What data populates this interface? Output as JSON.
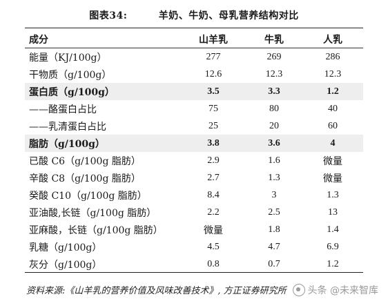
{
  "caption": {
    "number": "图表34:",
    "title": "羊奶、牛奶、母乳营养结构对比"
  },
  "table": {
    "headers": [
      "成分",
      "山羊乳",
      "牛乳",
      "人乳"
    ],
    "rows": [
      {
        "name": "能量（KJ/100g）",
        "goat": "277",
        "cow": "269",
        "human": "286",
        "bold": false,
        "shaded": false
      },
      {
        "name": "干物质（g/100g）",
        "goat": "12.6",
        "cow": "12.3",
        "human": "12.3",
        "bold": false,
        "shaded": false
      },
      {
        "name": "蛋白质（g/100g）",
        "goat": "3.5",
        "cow": "3.3",
        "human": "1.2",
        "bold": true,
        "shaded": true
      },
      {
        "name": "——酪蛋白占比",
        "goat": "75",
        "cow": "80",
        "human": "40",
        "bold": false,
        "shaded": false
      },
      {
        "name": "——乳清蛋白占比",
        "goat": "25",
        "cow": "20",
        "human": "60",
        "bold": false,
        "shaded": false
      },
      {
        "name": "脂肪（g/100g）",
        "goat": "3.8",
        "cow": "3.6",
        "human": "4",
        "bold": true,
        "shaded": true
      },
      {
        "name": "已酸 C6（g/100g 脂肪）",
        "goat": "2.9",
        "cow": "1.6",
        "human": "微量",
        "bold": false,
        "shaded": false
      },
      {
        "name": "辛酸 C8（g/100g 脂肪）",
        "goat": "2.7",
        "cow": "1.3",
        "human": "微量",
        "bold": false,
        "shaded": false
      },
      {
        "name": "癸酸 C10（g/100g 脂肪）",
        "goat": "8.4",
        "cow": "3",
        "human": "1.3",
        "bold": false,
        "shaded": false
      },
      {
        "name": "亚油酸,长链（g/100g 脂肪）",
        "goat": "2.2",
        "cow": "2.5",
        "human": "13",
        "bold": false,
        "shaded": false
      },
      {
        "name": "亚麻酸，长链（g/100g 脂肪）",
        "goat": "微量",
        "cow": "1.8",
        "human": "1.4",
        "bold": false,
        "shaded": false
      },
      {
        "name": "乳糖（g/100g）",
        "goat": "4.5",
        "cow": "4.7",
        "human": "6.9",
        "bold": false,
        "shaded": false
      },
      {
        "name": "灰分（g/100g）",
        "goat": "0.8",
        "cow": "0.7",
        "human": "1.2",
        "bold": false,
        "shaded": false
      }
    ]
  },
  "source": "资料来源:《山羊乳的营养价值及风味改善技术》, 方正证券研究所",
  "watermark": {
    "text": "头条 @未来智库",
    "icon": "toutiao-logo-icon"
  }
}
